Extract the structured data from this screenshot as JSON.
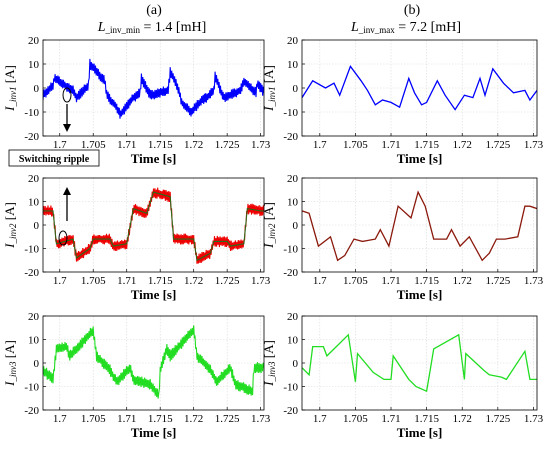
{
  "figure": {
    "col_a": {
      "header": "(a)",
      "title": {
        "italic": "L",
        "sub": "_inv_min",
        "rest": " = 1.4 [mH]"
      }
    },
    "col_b": {
      "header": "(b)",
      "title": {
        "italic": "L",
        "sub": "_inv_max",
        "rest": " = 7.2 [mH]"
      }
    },
    "annotation": "Switching ripple",
    "xlabel": "Time [s]"
  },
  "chart_data": [
    {
      "type": "line",
      "id": "a1",
      "ylabel": {
        "italic": "I",
        "sub": "_inv1",
        "rest": " [A]"
      },
      "color": "#0000ff",
      "ripple": 2.2,
      "xlim": [
        1.6975,
        1.7305
      ],
      "ylim": [
        -20,
        20
      ],
      "xticks": [
        1.7,
        1.705,
        1.71,
        1.715,
        1.72,
        1.725,
        1.73
      ],
      "xtick_labels": [
        "1.7",
        "1.705",
        "1.71",
        "1.715",
        "1.72",
        "1.725",
        "1.73"
      ],
      "yticks": [
        -20,
        -10,
        0,
        10,
        20
      ],
      "series": [
        {
          "x": [
            1.6975,
            1.699,
            1.6992,
            1.702,
            1.7025,
            1.7043,
            1.7045,
            1.7067,
            1.707,
            1.7085,
            1.709,
            1.7102,
            1.711,
            1.712,
            1.7122,
            1.7133,
            1.7136,
            1.7162,
            1.7165,
            1.7178,
            1.7182,
            1.7195,
            1.72,
            1.7212,
            1.722,
            1.723,
            1.7232,
            1.7243,
            1.7246,
            1.727,
            1.7275,
            1.7293,
            1.7295,
            1.7305
          ],
          "y": [
            -3,
            1,
            4,
            -1,
            -4,
            1,
            10,
            3,
            -3,
            -8,
            -11,
            -7,
            -4,
            -2,
            4,
            -2,
            -3,
            -1,
            7,
            -1,
            -6,
            -10,
            -9,
            -5,
            -4,
            -1,
            5,
            -3,
            -4,
            -1,
            3,
            -2,
            2,
            -2
          ]
        }
      ]
    },
    {
      "type": "line",
      "id": "b1",
      "ylabel": {
        "italic": "I",
        "sub": "_inv1",
        "rest": " [A]"
      },
      "color": "#0000ff",
      "ripple": 0,
      "xlim": [
        1.6975,
        1.7305
      ],
      "ylim": [
        -20,
        20
      ],
      "xticks": [
        1.7,
        1.705,
        1.71,
        1.715,
        1.72,
        1.725,
        1.73
      ],
      "xtick_labels": [
        "1.7",
        "1.705",
        "1.71",
        "1.715",
        "1.72",
        "1.725",
        "1.73"
      ],
      "yticks": [
        -20,
        -10,
        0,
        10,
        20
      ],
      "series": [
        {
          "x": [
            1.6975,
            1.699,
            1.7008,
            1.702,
            1.7028,
            1.7043,
            1.7058,
            1.7067,
            1.7078,
            1.7088,
            1.71,
            1.7112,
            1.7125,
            1.7133,
            1.7143,
            1.715,
            1.7165,
            1.7176,
            1.719,
            1.7203,
            1.7215,
            1.7225,
            1.7232,
            1.7243,
            1.7258,
            1.7272,
            1.7288,
            1.7295,
            1.7305
          ],
          "y": [
            -4,
            3,
            0,
            2,
            -3,
            9,
            3,
            -1,
            -7,
            -5,
            -6,
            -8,
            4,
            -2,
            -7,
            -6,
            3,
            -3,
            -9,
            -3,
            -4,
            4,
            -3,
            8,
            2,
            -2,
            -1,
            -5,
            -1
          ]
        }
      ]
    },
    {
      "type": "line",
      "id": "a2",
      "ylabel": {
        "italic": "I",
        "sub": "_inv2",
        "rest": " [A]"
      },
      "color": "#ee0000",
      "overlay_color": "#2a6a1a",
      "ripple": 2.4,
      "xlim": [
        1.6975,
        1.7305
      ],
      "ylim": [
        -20,
        20
      ],
      "xticks": [
        1.7,
        1.705,
        1.71,
        1.715,
        1.72,
        1.725,
        1.73
      ],
      "xtick_labels": [
        "1.7",
        "1.705",
        "1.71",
        "1.715",
        "1.72",
        "1.725",
        "1.73"
      ],
      "yticks": [
        -20,
        -10,
        0,
        10,
        20
      ],
      "series": [
        {
          "x": [
            1.6975,
            1.699,
            1.6995,
            1.702,
            1.7025,
            1.7045,
            1.705,
            1.7075,
            1.708,
            1.71,
            1.711,
            1.713,
            1.714,
            1.7165,
            1.717,
            1.72,
            1.7205,
            1.7225,
            1.723,
            1.725,
            1.7255,
            1.7275,
            1.728,
            1.73,
            1.7305
          ],
          "y": [
            6,
            6,
            -8,
            -6,
            -14,
            -10,
            -6,
            -6,
            -9,
            -8,
            7,
            5,
            14,
            12,
            -6,
            -6,
            -15,
            -12,
            -7,
            -7,
            -9,
            -8,
            7,
            6,
            6
          ]
        }
      ]
    },
    {
      "type": "line",
      "id": "b2",
      "ylabel": {
        "italic": "I",
        "sub": "_inv2",
        "rest": " [A]"
      },
      "color": "#8b1a0d",
      "ripple": 0,
      "xlim": [
        1.6975,
        1.7305
      ],
      "ylim": [
        -20,
        20
      ],
      "xticks": [
        1.7,
        1.705,
        1.71,
        1.715,
        1.72,
        1.725,
        1.73
      ],
      "xtick_labels": [
        "1.7",
        "1.705",
        "1.71",
        "1.715",
        "1.72",
        "1.725",
        "1.73"
      ],
      "yticks": [
        -20,
        -10,
        0,
        10,
        20
      ],
      "series": [
        {
          "x": [
            1.6975,
            1.6985,
            1.6998,
            1.7015,
            1.7025,
            1.7035,
            1.7048,
            1.706,
            1.7078,
            1.7085,
            1.7097,
            1.711,
            1.7128,
            1.7138,
            1.7148,
            1.716,
            1.7178,
            1.7185,
            1.7197,
            1.721,
            1.7228,
            1.7238,
            1.7248,
            1.726,
            1.7278,
            1.7288,
            1.7295,
            1.7305
          ],
          "y": [
            6,
            5,
            -9,
            -5,
            -15,
            -13,
            -6,
            -7,
            -6,
            -2,
            -9,
            8,
            3,
            14,
            8,
            -6,
            -6,
            -2,
            -9,
            -5,
            -15,
            -12,
            -6,
            -6,
            -5,
            8,
            8,
            7
          ]
        }
      ]
    },
    {
      "type": "line",
      "id": "a3",
      "ylabel": {
        "italic": "I",
        "sub": "_inv3",
        "rest": " [A]"
      },
      "color": "#22dd22",
      "ripple": 2.4,
      "xlim": [
        1.6975,
        1.7305
      ],
      "ylim": [
        -20,
        20
      ],
      "xticks": [
        1.7,
        1.705,
        1.71,
        1.715,
        1.72,
        1.725,
        1.73
      ],
      "xtick_labels": [
        "1.7",
        "1.705",
        "1.71",
        "1.715",
        "1.72",
        "1.725",
        "1.73"
      ],
      "yticks": [
        -20,
        -10,
        0,
        10,
        20
      ],
      "series": [
        {
          "x": [
            1.6975,
            1.699,
            1.6995,
            1.701,
            1.7015,
            1.705,
            1.7055,
            1.7075,
            1.7085,
            1.7105,
            1.711,
            1.7135,
            1.7148,
            1.715,
            1.716,
            1.7165,
            1.72,
            1.7205,
            1.7225,
            1.7235,
            1.7255,
            1.7262,
            1.7288,
            1.729,
            1.7305
          ],
          "y": [
            -3,
            -7,
            6,
            7,
            3,
            14,
            3,
            -3,
            -8,
            -2,
            -7,
            -9,
            -14,
            -3,
            6,
            3,
            14,
            3,
            -3,
            -8,
            -2,
            -9,
            -12,
            -2,
            -2
          ]
        }
      ]
    },
    {
      "type": "line",
      "id": "b3",
      "ylabel": {
        "italic": "I",
        "sub": "_inv3",
        "rest": " [A]"
      },
      "color": "#22dd22",
      "ripple": 0,
      "xlim": [
        1.6975,
        1.7305
      ],
      "ylim": [
        -20,
        20
      ],
      "xticks": [
        1.7,
        1.705,
        1.71,
        1.715,
        1.72,
        1.725,
        1.73
      ],
      "xtick_labels": [
        "1.7",
        "1.705",
        "1.71",
        "1.715",
        "1.72",
        "1.725",
        "1.73"
      ],
      "yticks": [
        -20,
        -10,
        0,
        10,
        20
      ],
      "series": [
        {
          "x": [
            1.6975,
            1.6985,
            1.699,
            1.7005,
            1.701,
            1.704,
            1.705,
            1.7053,
            1.7075,
            1.709,
            1.71,
            1.7103,
            1.7125,
            1.7135,
            1.715,
            1.7155,
            1.716,
            1.7195,
            1.7203,
            1.7205,
            1.723,
            1.7238,
            1.7255,
            1.7262,
            1.7288,
            1.7295,
            1.7305
          ],
          "y": [
            -2,
            -5,
            7,
            7,
            3,
            12,
            -8,
            4,
            -4,
            -7,
            -7,
            3,
            -7,
            -10,
            -12,
            -3,
            6,
            12,
            -7,
            4,
            -3,
            -5,
            -6,
            -7,
            5,
            -7,
            -7
          ]
        }
      ]
    }
  ]
}
